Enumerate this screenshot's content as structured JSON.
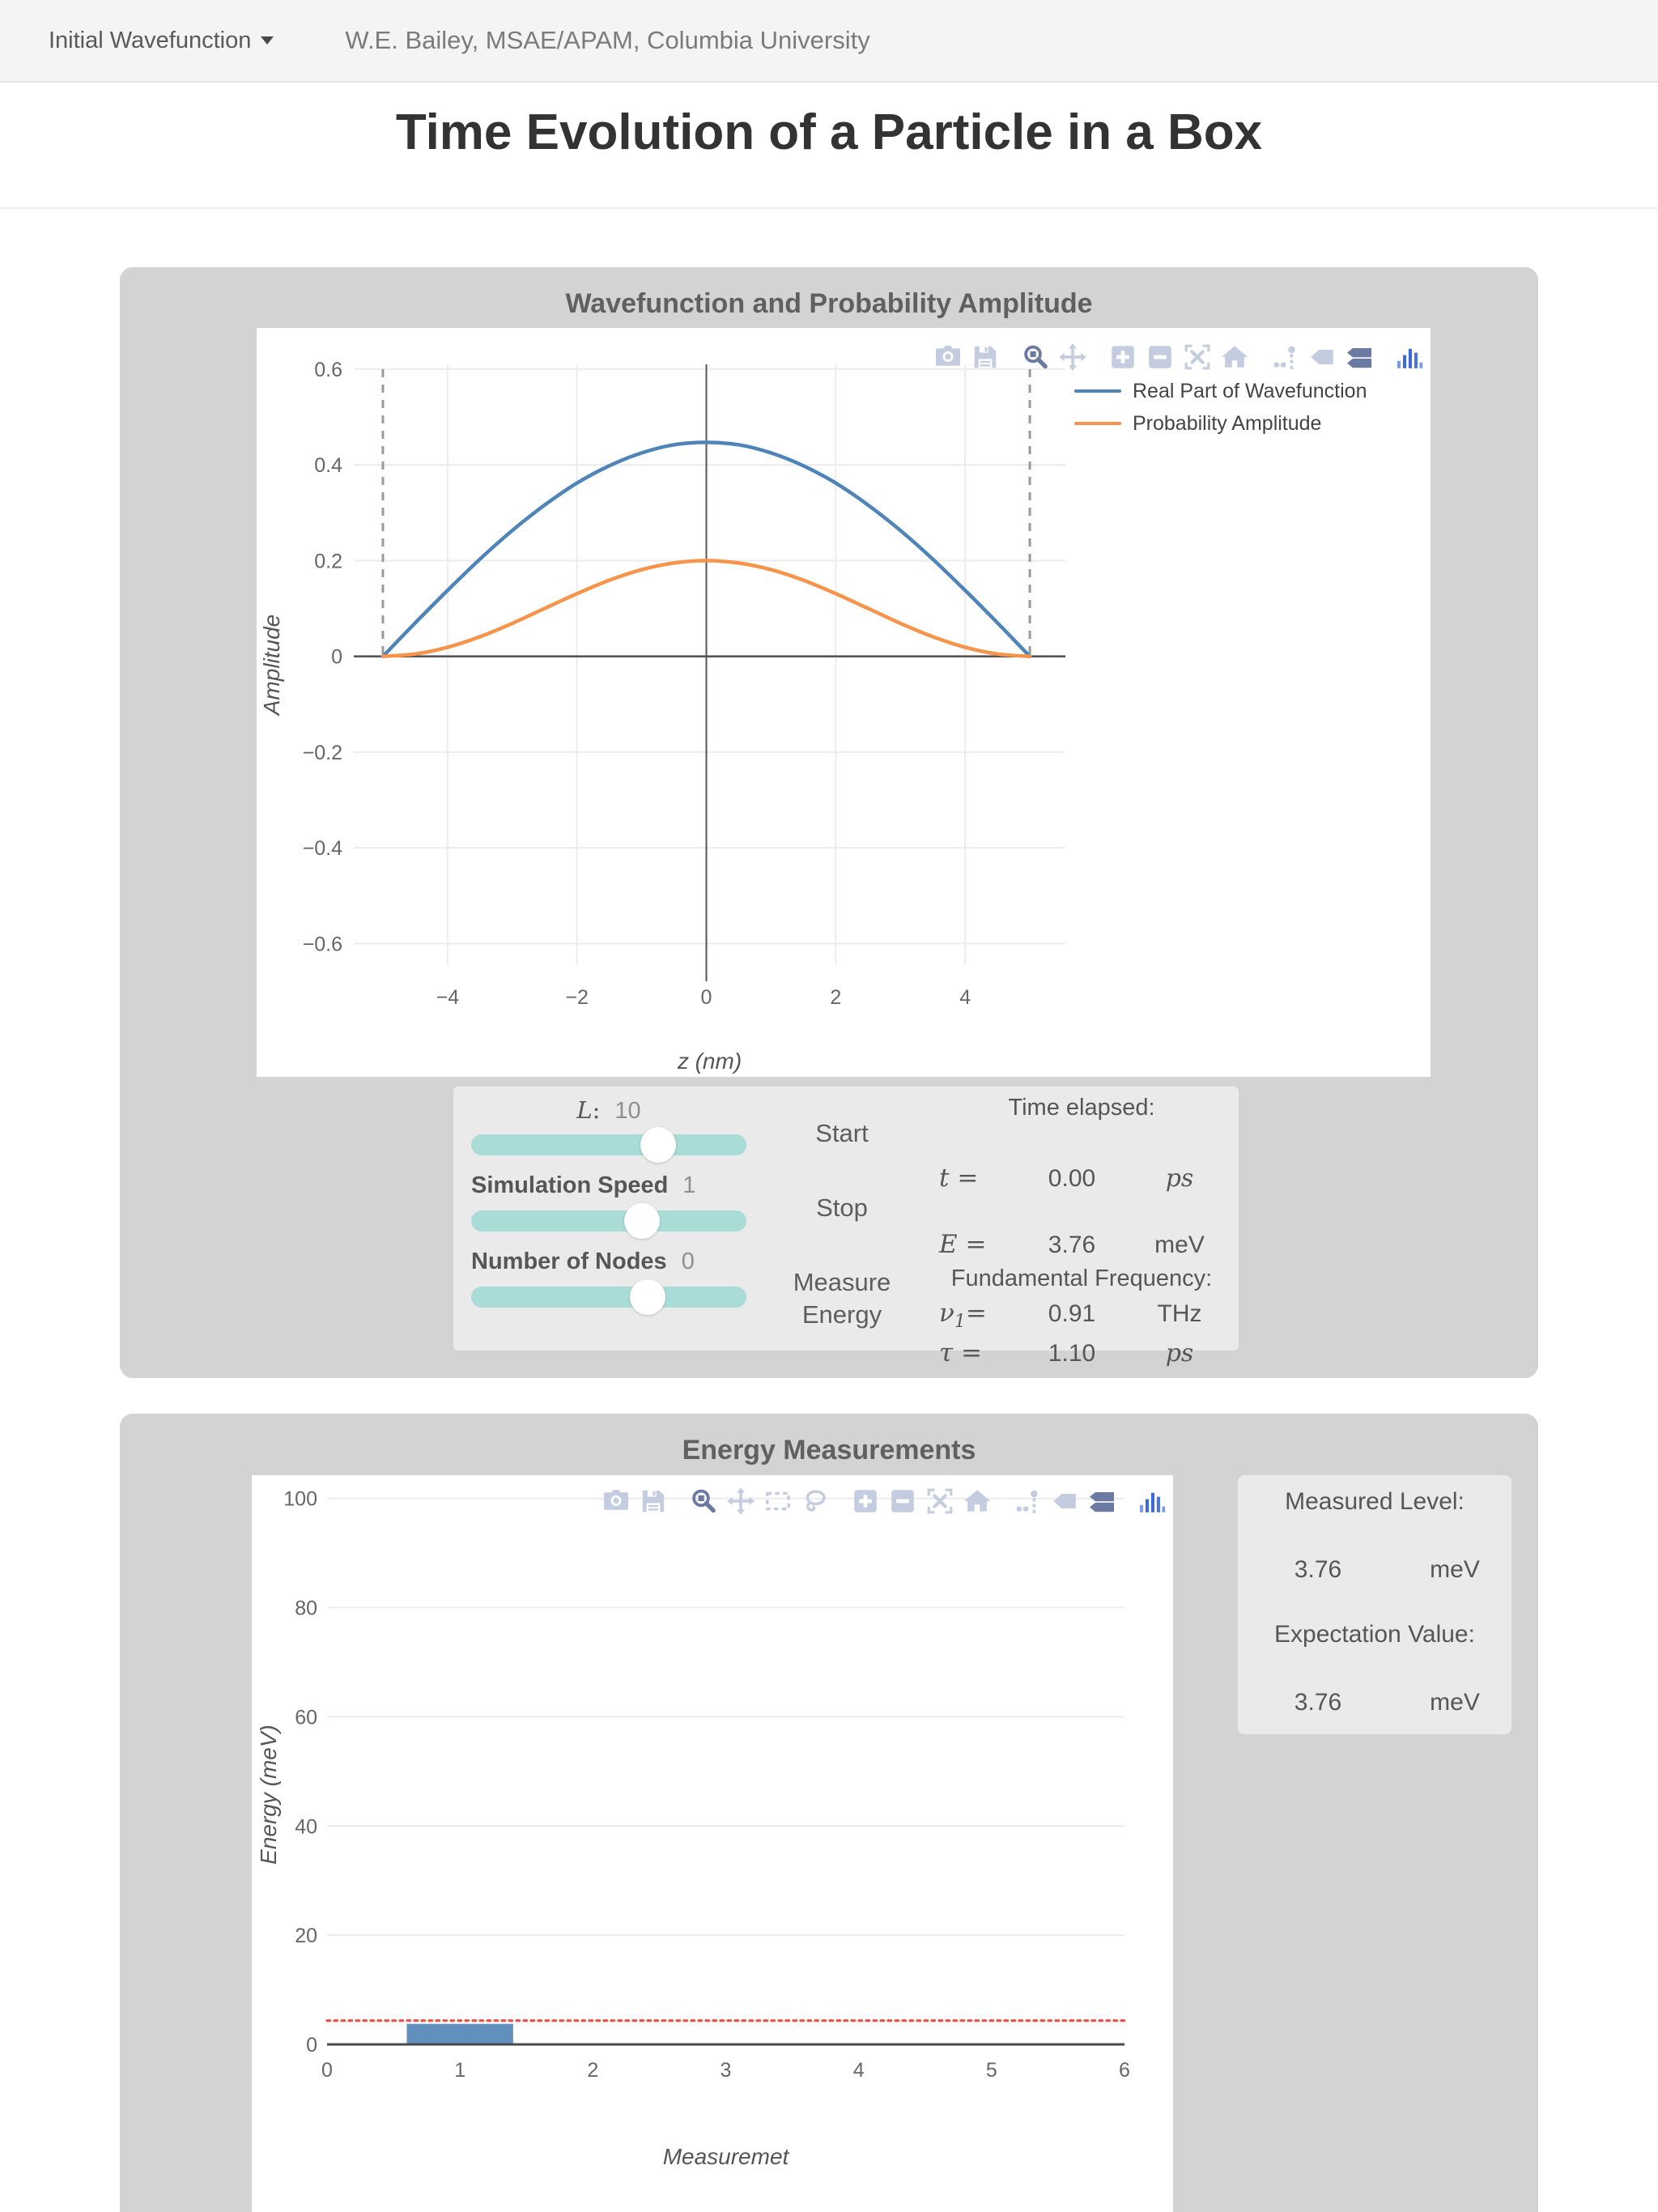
{
  "topbar": {
    "dropdown_label": "Initial Wavefunction",
    "byline": "W.E. Bailey, MSAE/APAM, Columbia University"
  },
  "page_title": "Time Evolution of a Particle in a Box",
  "wave_card": {
    "title": "Wavefunction and Probability Amplitude",
    "modebar": [
      {
        "name": "camera"
      },
      {
        "name": "save"
      },
      {
        "name": "zoom",
        "active": true,
        "group": true
      },
      {
        "name": "pan"
      },
      {
        "name": "zoom-in",
        "group": true
      },
      {
        "name": "zoom-out"
      },
      {
        "name": "autoscale"
      },
      {
        "name": "home"
      },
      {
        "name": "spikelines",
        "group": true
      },
      {
        "name": "hover-closest"
      },
      {
        "name": "hover-compare",
        "active": true
      },
      {
        "name": "plotly-logo",
        "group": true
      }
    ],
    "controls": {
      "sliders": [
        {
          "sym": "L",
          "sep": ":",
          "math": true,
          "value": "10",
          "fraction": 0.68,
          "name": "length-slider"
        },
        {
          "label": "Simulation Speed",
          "value": "1",
          "fraction": 0.62,
          "name": "simulation-speed-slider"
        },
        {
          "label": "Number of Nodes",
          "value": "0",
          "fraction": 0.64,
          "name": "number-of-nodes-slider"
        }
      ],
      "buttons": [
        {
          "label": "Start",
          "name": "start-button"
        },
        {
          "label": "Stop",
          "name": "stop-button"
        },
        {
          "label": "Measure Energy",
          "name": "measure-energy-button"
        }
      ],
      "readouts": [
        {
          "type": "header",
          "text": "Time elapsed:"
        },
        {
          "type": "row",
          "sym": "t",
          "rest": " =",
          "value": "0.00",
          "unit": "ps",
          "unit_math": true
        },
        {
          "type": "row",
          "sym": "E",
          "rest": " =",
          "value": "3.76",
          "unit": "meV"
        },
        {
          "type": "header",
          "text": "Fundamental Frequency:"
        },
        {
          "type": "row",
          "sym": "ν",
          "sub": "1",
          "rest": "=",
          "value": "0.91",
          "unit": "THz"
        },
        {
          "type": "row",
          "sym": "τ",
          "rest": " =",
          "value": "1.10",
          "unit": "ps",
          "unit_math": true
        }
      ]
    }
  },
  "energy_card": {
    "title": "Energy Measurements",
    "modebar": [
      {
        "name": "camera"
      },
      {
        "name": "save"
      },
      {
        "name": "zoom",
        "active": true,
        "group": true
      },
      {
        "name": "pan"
      },
      {
        "name": "box-select"
      },
      {
        "name": "lasso"
      },
      {
        "name": "zoom-in",
        "group": true
      },
      {
        "name": "zoom-out"
      },
      {
        "name": "autoscale"
      },
      {
        "name": "home"
      },
      {
        "name": "spikelines",
        "group": true
      },
      {
        "name": "hover-closest"
      },
      {
        "name": "hover-compare",
        "active": true
      },
      {
        "name": "plotly-logo",
        "group": true
      }
    ],
    "measured_header": "Measured Level:",
    "measured_value": "3.76",
    "measured_unit": "meV",
    "expectation_header": "Expectation Value:",
    "expectation_value": "3.76",
    "expectation_unit": "meV"
  },
  "chart_data": [
    {
      "type": "line",
      "title": "Wavefunction and Probability Amplitude",
      "xlabel": "z (nm)",
      "ylabel": "Amplitude",
      "xlim": [
        -5.45,
        5.55
      ],
      "ylim": [
        -0.645,
        0.61
      ],
      "xticks": [
        -4,
        -2,
        0,
        2,
        4
      ],
      "yticks": [
        -0.6,
        -0.4,
        -0.2,
        0,
        0.2,
        0.4,
        0.6
      ],
      "grid": true,
      "box_walls_x": [
        -5,
        5
      ],
      "legend_position": "top-right",
      "series": [
        {
          "name": "Real Part of Wavefunction",
          "color": "#4e84b8",
          "x": [
            -5,
            -4.5,
            -4,
            -3.5,
            -3,
            -2.5,
            -2,
            -1.5,
            -1,
            -0.5,
            0,
            0.5,
            1,
            1.5,
            2,
            2.5,
            3,
            3.5,
            4,
            4.5,
            5
          ],
          "y": [
            0,
            0.07,
            0.138,
            0.203,
            0.263,
            0.316,
            0.362,
            0.398,
            0.425,
            0.442,
            0.447,
            0.442,
            0.425,
            0.398,
            0.362,
            0.316,
            0.263,
            0.203,
            0.138,
            0.07,
            0
          ]
        },
        {
          "name": "Probability Amplitude",
          "color": "#f5944a",
          "x": [
            -5,
            -4.5,
            -4,
            -3.5,
            -3,
            -2.5,
            -2,
            -1.5,
            -1,
            -0.5,
            0,
            0.5,
            1,
            1.5,
            2,
            2.5,
            3,
            3.5,
            4,
            4.5,
            5
          ],
          "y": [
            0,
            0.005,
            0.019,
            0.041,
            0.069,
            0.1,
            0.131,
            0.159,
            0.181,
            0.195,
            0.2,
            0.195,
            0.181,
            0.159,
            0.131,
            0.1,
            0.069,
            0.041,
            0.019,
            0.005,
            0
          ]
        }
      ]
    },
    {
      "type": "bar",
      "title": "Energy Measurements",
      "xlabel": "Measuremet",
      "ylabel": "Energy (meV)",
      "xlim": [
        0,
        6
      ],
      "ylim": [
        0,
        100.4
      ],
      "xticks": [
        0,
        1,
        2,
        3,
        4,
        5,
        6
      ],
      "yticks": [
        0,
        20,
        40,
        60,
        80,
        100
      ],
      "grid": true,
      "bars": [
        {
          "x": 1,
          "width": 0.8,
          "height": 3.76,
          "color": "#6190be"
        }
      ],
      "reference_line": {
        "y": 3.76,
        "color": "#ee5347",
        "style": "dotted"
      }
    }
  ]
}
